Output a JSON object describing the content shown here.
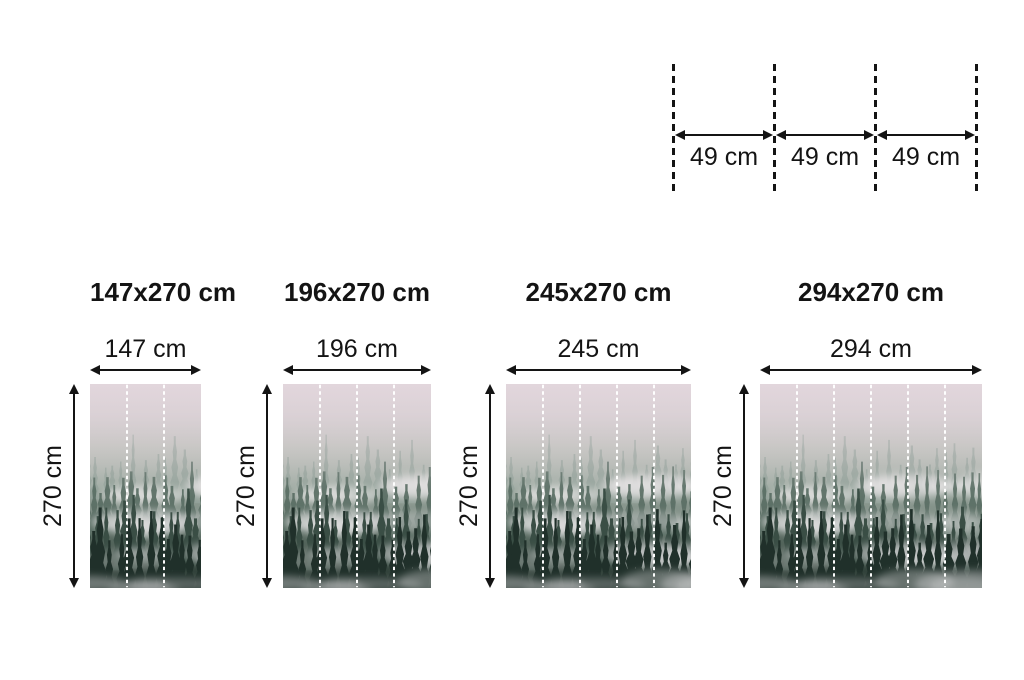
{
  "page": {
    "background_color": "#ffffff",
    "text_color": "#141414"
  },
  "panel_width_cm": 49,
  "panel_width_diagram": {
    "segments": [
      {
        "label": "49 cm"
      },
      {
        "label": "49 cm"
      },
      {
        "label": "49 cm"
      }
    ]
  },
  "variants": [
    {
      "title": "147x270 cm",
      "width_label": "147 cm",
      "height_label": "270 cm",
      "width_cm": 147,
      "height_cm": 270,
      "panel_count": 3
    },
    {
      "title": "196x270 cm",
      "width_label": "196 cm",
      "height_label": "270 cm",
      "width_cm": 196,
      "height_cm": 270,
      "panel_count": 4
    },
    {
      "title": "245x270 cm",
      "width_label": "245 cm",
      "height_label": "270 cm",
      "width_cm": 245,
      "height_cm": 270,
      "panel_count": 5
    },
    {
      "title": "294x270 cm",
      "width_label": "294 cm",
      "height_label": "270 cm",
      "width_cm": 294,
      "height_cm": 270,
      "panel_count": 6
    }
  ],
  "photo": {
    "description": "Foggy mountain forest with fir trees in mist, pale pink sky",
    "sky_stops": [
      "#e2d6dc",
      "#d7cfd3",
      "#c2c3be",
      "#a3aea6",
      "#6e7f75",
      "#3c4e45",
      "#22312b"
    ],
    "tree_layer_colors": [
      "#93a29a",
      "#5a6e64",
      "#3a4e45",
      "#20302a"
    ],
    "fog_color": "#e9e7e8",
    "divider_color": "#ffffff"
  },
  "measure_color": "#141414"
}
